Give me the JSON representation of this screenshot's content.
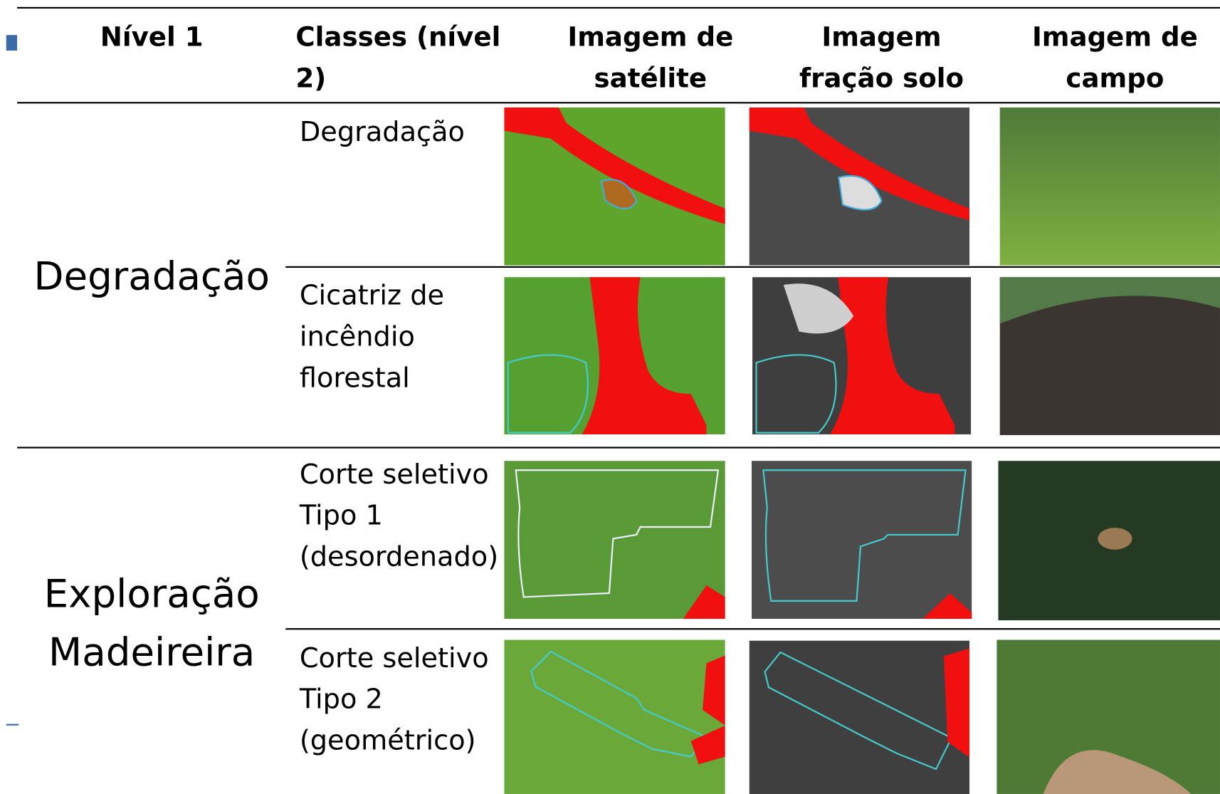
{
  "header": {
    "columns": [
      {
        "lines": [
          "Nível 1"
        ]
      },
      {
        "lines": [
          "Classes (nível 2)"
        ]
      },
      {
        "lines": [
          "Imagem de",
          "satélite"
        ]
      },
      {
        "lines": [
          "Imagem",
          "fração solo"
        ]
      },
      {
        "lines": [
          "Imagem de",
          "campo"
        ]
      }
    ]
  },
  "groups": [
    {
      "level1": [
        "Degradação"
      ],
      "rows": [
        {
          "class": [
            "Degradação"
          ]
        },
        {
          "class": [
            "Cicatriz de",
            "incêndio",
            "florestal"
          ]
        }
      ]
    },
    {
      "level1": [
        "Exploração",
        "Madeireira"
      ],
      "rows": [
        {
          "class": [
            "Corte seletivo",
            "Tipo 1",
            "(desordenado)"
          ]
        },
        {
          "class": [
            "Corte seletivo",
            "Tipo 2",
            "(geométrico)"
          ]
        }
      ]
    }
  ]
}
